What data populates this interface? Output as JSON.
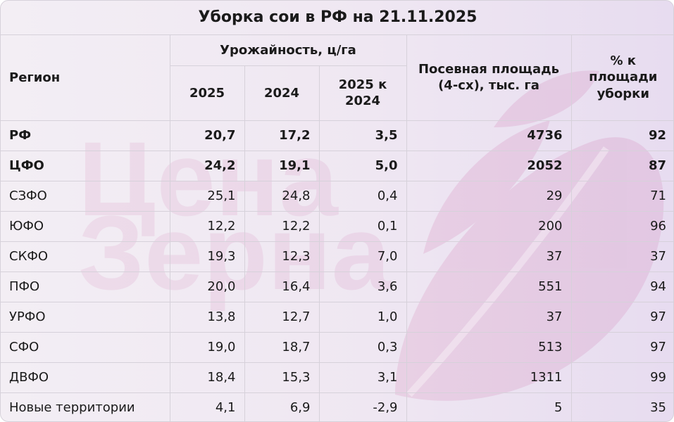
{
  "title": "Уборка сои в РФ на 21.11.2025",
  "headers": {
    "region": "Регион",
    "yield_group": "Урожайность, ц/га",
    "year_2025": "2025",
    "year_2024": "2024",
    "delta": "2025 к 2024",
    "sown_area": "Посевная площадь (4-сх), тыс. га",
    "harvest_pct": "% к площади уборки"
  },
  "watermark": {
    "line1": "Цена",
    "line2": "Зерна"
  },
  "colors": {
    "background_start": "#f3eef4",
    "background_end": "#e7dcf0",
    "watermark": "#c13c8a",
    "grid": "#d6d1da"
  },
  "rows": [
    {
      "region": "РФ",
      "y2025": "20,7",
      "y2024": "17,2",
      "delta": "3,5",
      "area": "4736",
      "pct": "92",
      "bold": true
    },
    {
      "region": "ЦФО",
      "y2025": "24,2",
      "y2024": "19,1",
      "delta": "5,0",
      "area": "2052",
      "pct": "87",
      "bold": true
    },
    {
      "region": "СЗФО",
      "y2025": "25,1",
      "y2024": "24,8",
      "delta": "0,4",
      "area": "29",
      "pct": "71",
      "bold": false
    },
    {
      "region": "ЮФО",
      "y2025": "12,2",
      "y2024": "12,2",
      "delta": "0,1",
      "area": "200",
      "pct": "96",
      "bold": false
    },
    {
      "region": "СКФО",
      "y2025": "19,3",
      "y2024": "12,3",
      "delta": "7,0",
      "area": "37",
      "pct": "37",
      "bold": false
    },
    {
      "region": "ПФО",
      "y2025": "20,0",
      "y2024": "16,4",
      "delta": "3,6",
      "area": "551",
      "pct": "94",
      "bold": false
    },
    {
      "region": "УРФО",
      "y2025": "13,8",
      "y2024": "12,7",
      "delta": "1,0",
      "area": "37",
      "pct": "97",
      "bold": false
    },
    {
      "region": "СФО",
      "y2025": "19,0",
      "y2024": "18,7",
      "delta": "0,3",
      "area": "513",
      "pct": "97",
      "bold": false
    },
    {
      "region": "ДВФО",
      "y2025": "18,4",
      "y2024": "15,3",
      "delta": "3,1",
      "area": "1311",
      "pct": "99",
      "bold": false
    },
    {
      "region": "Новые территории",
      "y2025": "4,1",
      "y2024": "6,9",
      "delta": "-2,9",
      "area": "5",
      "pct": "35",
      "bold": false
    }
  ]
}
